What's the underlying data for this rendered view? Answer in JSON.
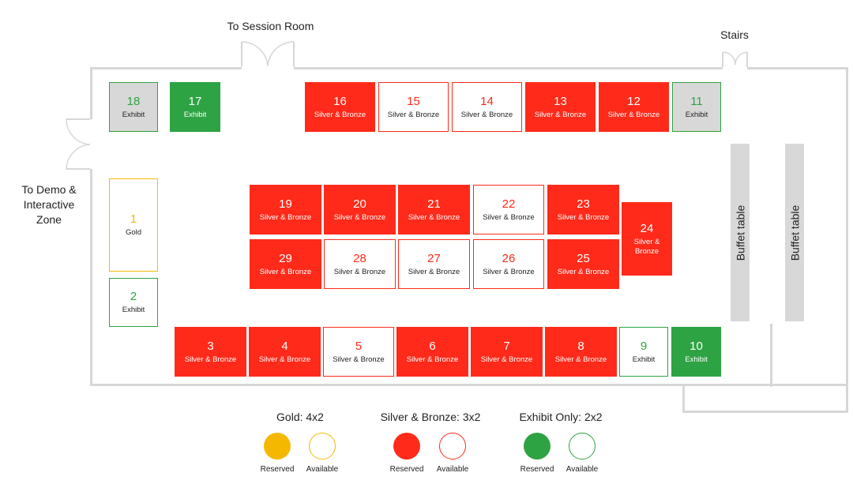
{
  "labels": {
    "session_room": "To Session Room",
    "stairs": "Stairs",
    "demo_zone": "To Demo & Interactive Zone",
    "buffet_1": "Buffet table",
    "buffet_2": "Buffet table"
  },
  "booths": [
    {
      "id": "18",
      "type": "Exhibit",
      "status": "exhibit-grey"
    },
    {
      "id": "17",
      "type": "Exhibit",
      "status": "exhibit-reserved"
    },
    {
      "id": "16",
      "type": "Silver & Bronze",
      "status": "sb-reserved"
    },
    {
      "id": "15",
      "type": "Silver & Bronze",
      "status": "sb-available"
    },
    {
      "id": "14",
      "type": "Silver & Bronze",
      "status": "sb-available"
    },
    {
      "id": "13",
      "type": "Silver & Bronze",
      "status": "sb-reserved"
    },
    {
      "id": "12",
      "type": "Silver & Bronze",
      "status": "sb-reserved"
    },
    {
      "id": "11",
      "type": "Exhibit",
      "status": "exhibit-grey"
    },
    {
      "id": "1",
      "type": "Gold",
      "status": "gold-available"
    },
    {
      "id": "2",
      "type": "Exhibit",
      "status": "exhibit-available"
    },
    {
      "id": "19",
      "type": "Silver & Bronze",
      "status": "sb-reserved"
    },
    {
      "id": "20",
      "type": "Silver & Bronze",
      "status": "sb-reserved"
    },
    {
      "id": "21",
      "type": "Silver & Bronze",
      "status": "sb-reserved"
    },
    {
      "id": "22",
      "type": "Silver & Bronze",
      "status": "sb-available"
    },
    {
      "id": "23",
      "type": "Silver & Bronze",
      "status": "sb-reserved"
    },
    {
      "id": "24",
      "type": "Silver & Bronze",
      "status": "sb-reserved"
    },
    {
      "id": "29",
      "type": "Silver & Bronze",
      "status": "sb-reserved"
    },
    {
      "id": "28",
      "type": "Silver & Bronze",
      "status": "sb-available"
    },
    {
      "id": "27",
      "type": "Silver & Bronze",
      "status": "sb-available"
    },
    {
      "id": "26",
      "type": "Silver & Bronze",
      "status": "sb-available"
    },
    {
      "id": "25",
      "type": "Silver & Bronze",
      "status": "sb-reserved"
    },
    {
      "id": "3",
      "type": "Silver & Bronze",
      "status": "sb-reserved"
    },
    {
      "id": "4",
      "type": "Silver & Bronze",
      "status": "sb-reserved"
    },
    {
      "id": "5",
      "type": "Silver & Bronze",
      "status": "sb-available"
    },
    {
      "id": "6",
      "type": "Silver & Bronze",
      "status": "sb-reserved"
    },
    {
      "id": "7",
      "type": "Silver & Bronze",
      "status": "sb-reserved"
    },
    {
      "id": "8",
      "type": "Silver & Bronze",
      "status": "sb-reserved"
    },
    {
      "id": "9",
      "type": "Exhibit",
      "status": "exhibit-available"
    },
    {
      "id": "10",
      "type": "Exhibit",
      "status": "exhibit-reserved"
    }
  ],
  "legend": {
    "gold": {
      "title": "Gold: 4x2",
      "reserved": "Reserved",
      "available": "Available"
    },
    "sb": {
      "title": "Silver & Bronze: 3x2",
      "reserved": "Reserved",
      "available": "Available"
    },
    "exhibit": {
      "title": "Exhibit Only: 2x2",
      "reserved": "Reserved",
      "available": "Available"
    }
  },
  "colors": {
    "sb_red": "#ff2a1a",
    "exhibit_green": "#2ea344",
    "gold_yellow": "#f5b800",
    "wall_grey": "#d7d7d7",
    "buffet_grey": "#d8d8d8"
  }
}
